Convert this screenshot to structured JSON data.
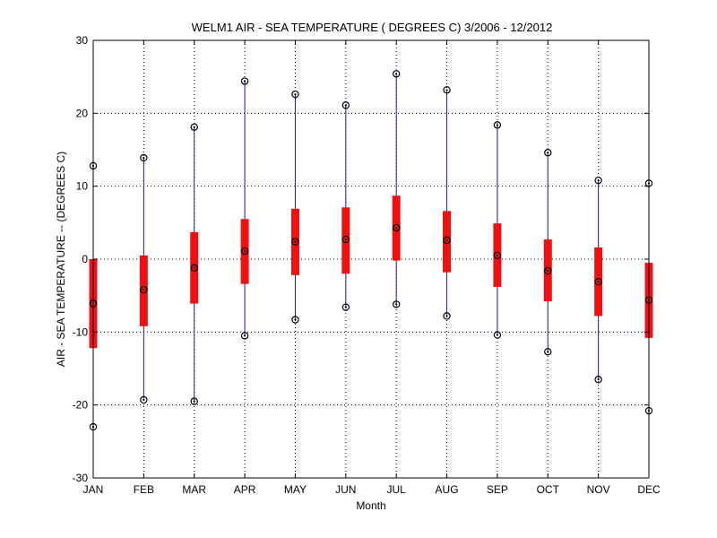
{
  "chart_data": {
    "type": "boxplot",
    "title": "WELM1  AIR - SEA TEMPERATURE ( DEGREES C) 3/2006 - 12/2012",
    "xlabel": "Month",
    "ylabel": "AIR - SEA TEMPERATURE -- (DEGREES C)",
    "ylim": [
      -30,
      30
    ],
    "yticks": [
      -30,
      -20,
      -10,
      0,
      10,
      20,
      30
    ],
    "grid": true,
    "categories": [
      "JAN",
      "FEB",
      "MAR",
      "APR",
      "MAY",
      "JUN",
      "JUL",
      "AUG",
      "SEP",
      "OCT",
      "NOV",
      "DEC"
    ],
    "series": [
      {
        "min": [
          -23.0,
          -19.3,
          -19.5,
          -10.5,
          -8.3,
          -6.6,
          -6.2,
          -7.8,
          -10.4,
          -12.7,
          -16.5,
          -20.8
        ],
        "q1": [
          -12.2,
          -9.2,
          -6.1,
          -3.4,
          -2.2,
          -2.0,
          -0.2,
          -1.8,
          -3.8,
          -5.8,
          -7.8,
          -10.8
        ],
        "median": [
          -6.1,
          -4.2,
          -1.2,
          1.1,
          2.4,
          2.7,
          4.3,
          2.6,
          0.5,
          -1.6,
          -3.1,
          -5.6
        ],
        "q3": [
          0.0,
          0.5,
          3.7,
          5.5,
          6.9,
          7.1,
          8.7,
          6.6,
          4.9,
          2.7,
          1.6,
          -0.5
        ],
        "max": [
          12.8,
          13.9,
          18.1,
          24.4,
          22.6,
          21.1,
          25.4,
          23.2,
          18.4,
          14.6,
          10.8,
          10.4
        ]
      }
    ],
    "colors": {
      "box": "#ee1111",
      "whisker": "#2323a3",
      "marker": "#000000",
      "grid": "#000000"
    }
  }
}
